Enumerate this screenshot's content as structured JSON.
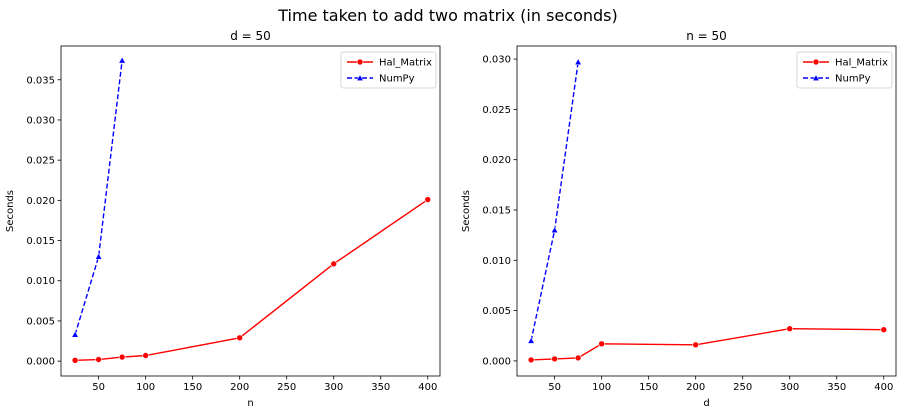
{
  "figure": {
    "suptitle": "Time taken to add two matrix (in seconds)"
  },
  "chart_data": [
    {
      "type": "line",
      "title": "d = 50",
      "xlabel": "n",
      "ylabel": "Seconds",
      "xlim": [
        10,
        413
      ],
      "ylim": [
        -0.00185,
        0.0392
      ],
      "xticks": [
        50,
        100,
        150,
        200,
        250,
        300,
        350,
        400
      ],
      "yticks": [
        0.0,
        0.005,
        0.01,
        0.015,
        0.02,
        0.025,
        0.03,
        0.035
      ],
      "ytick_labels": [
        "0.000",
        "0.005",
        "0.010",
        "0.015",
        "0.020",
        "0.025",
        "0.030",
        "0.035"
      ],
      "legend": "top-right",
      "series": [
        {
          "name": "Hal_Matrix",
          "color": "#ff0000",
          "linestyle": "solid",
          "marker": "circle",
          "x": [
            25,
            50,
            75,
            100,
            200,
            300,
            400
          ],
          "y": [
            0.0001,
            0.0002,
            0.0005,
            0.0007,
            0.0029,
            0.0121,
            0.0201
          ]
        },
        {
          "name": "NumPy",
          "color": "#0000ff",
          "linestyle": "dashed",
          "marker": "triangle",
          "x": [
            25,
            50,
            75
          ],
          "y": [
            0.0033,
            0.013,
            0.0374
          ]
        }
      ]
    },
    {
      "type": "line",
      "title": "n = 50",
      "xlabel": "d",
      "ylabel": "Seconds",
      "xlim": [
        10,
        413
      ],
      "ylim": [
        -0.0015,
        0.0313
      ],
      "xticks": [
        50,
        100,
        150,
        200,
        250,
        300,
        350,
        400
      ],
      "yticks": [
        0.0,
        0.005,
        0.01,
        0.015,
        0.02,
        0.025,
        0.03
      ],
      "ytick_labels": [
        "0.000",
        "0.005",
        "0.010",
        "0.015",
        "0.020",
        "0.025",
        "0.030"
      ],
      "legend": "top-right",
      "series": [
        {
          "name": "Hal_Matrix",
          "color": "#ff0000",
          "linestyle": "solid",
          "marker": "circle",
          "x": [
            25,
            50,
            75,
            100,
            200,
            300,
            400
          ],
          "y": [
            0.0001,
            0.0002,
            0.0003,
            0.0017,
            0.0016,
            0.0032,
            0.0031
          ]
        },
        {
          "name": "NumPy",
          "color": "#0000ff",
          "linestyle": "dashed",
          "marker": "triangle",
          "x": [
            25,
            50,
            75
          ],
          "y": [
            0.002,
            0.013,
            0.0297
          ]
        }
      ]
    }
  ]
}
